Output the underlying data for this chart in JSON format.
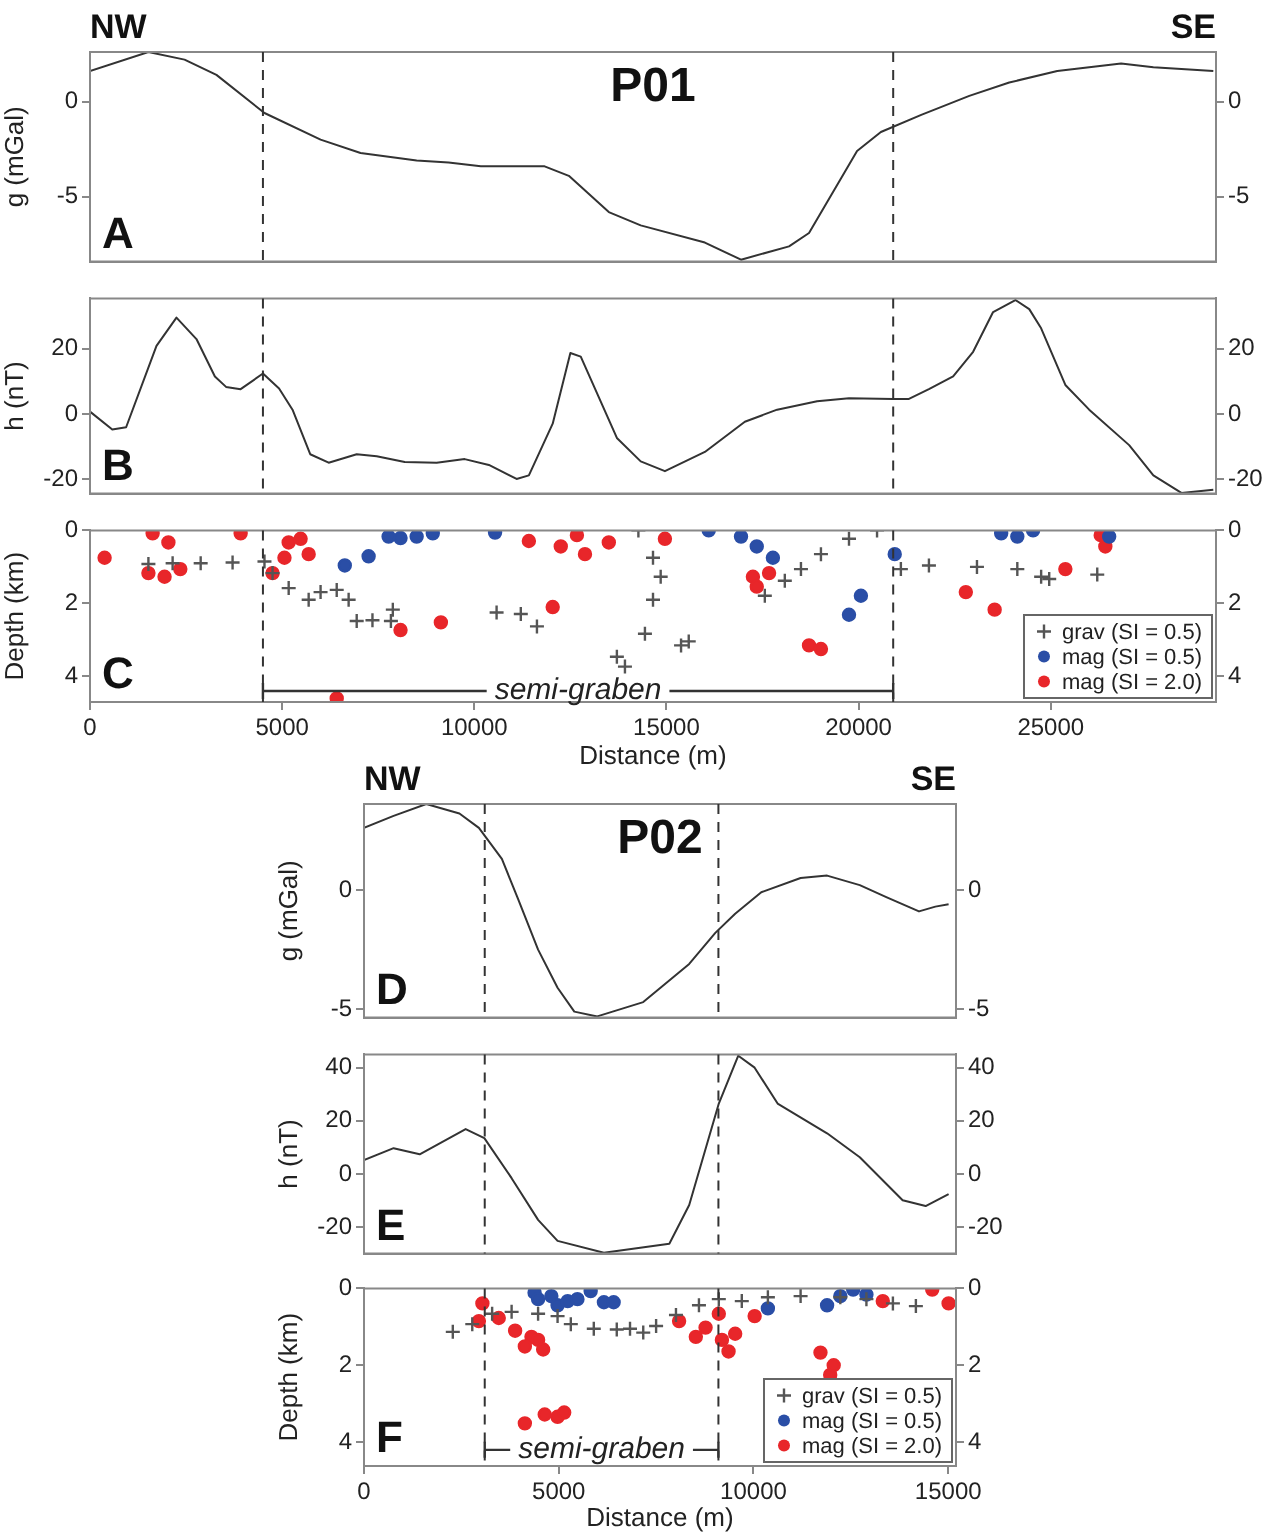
{
  "chart_data": [
    {
      "type": "line",
      "title": "P01",
      "ylabel": "g (mGal)",
      "annotations": [
        "A",
        "NW",
        "SE"
      ],
      "x": [
        0,
        1520,
        2460,
        3290,
        4540,
        6000,
        7040,
        8500,
        9330,
        10170,
        11830,
        12460,
        13500,
        14330,
        16000,
        16940,
        18190,
        18710,
        19960,
        20580,
        21630,
        22880,
        23920,
        25170,
        26830,
        27670,
        29230
      ],
      "series": [
        {
          "color": "#333333",
          "values": [
            1.6,
            2.6,
            2.2,
            1.4,
            -0.6,
            -2.0,
            -2.7,
            -3.1,
            -3.2,
            -3.4,
            -3.4,
            -3.9,
            -5.8,
            -6.5,
            -7.4,
            -8.3,
            -7.6,
            -6.9,
            -2.6,
            -1.6,
            -0.7,
            0.3,
            1.0,
            1.6,
            2.0,
            1.8,
            1.6
          ]
        }
      ],
      "xlim": [
        0,
        29300
      ],
      "ylim": [
        -8.4,
        2.6
      ],
      "yticks": [
        -5,
        0
      ],
      "y2lim": [
        -8.4,
        2.6
      ],
      "y2ticks": [
        -5,
        0
      ],
      "tick_labels": "y",
      "ref_lines": [
        {
          "axis": "x",
          "value": 4500,
          "line_style": "dashed"
        },
        {
          "axis": "x",
          "value": 20900,
          "line_style": "dashed"
        }
      ]
    },
    {
      "type": "line",
      "ylabel": "h (nT)",
      "annotations": [
        "B"
      ],
      "x": [
        0,
        580,
        940,
        1730,
        2250,
        2770,
        3250,
        3540,
        3920,
        4500,
        4920,
        5270,
        5730,
        6210,
        6940,
        7460,
        8190,
        9020,
        9750,
        10380,
        11100,
        11420,
        12040,
        12500,
        12770,
        13710,
        14330,
        14960,
        16000,
        17040,
        17880,
        18920,
        19750,
        20900,
        21310,
        21830,
        22460,
        22980,
        23500,
        24080,
        24440,
        24750,
        25380,
        26000,
        27040,
        27670,
        28400,
        29230
      ],
      "series": [
        {
          "color": "#333333",
          "values": [
            0.7,
            -4.8,
            -4.1,
            20.9,
            29.6,
            23.0,
            11.5,
            8.3,
            7.6,
            12.4,
            7.8,
            1.3,
            -12.4,
            -15.0,
            -12.4,
            -13.0,
            -14.8,
            -15.0,
            -13.9,
            -15.7,
            -20.0,
            -18.9,
            -3.0,
            18.7,
            17.6,
            -7.4,
            -14.6,
            -17.6,
            -11.7,
            -2.4,
            1.3,
            3.9,
            4.8,
            4.6,
            4.6,
            7.6,
            11.5,
            19.1,
            31.3,
            35.0,
            32.2,
            26.3,
            8.9,
            1.3,
            -9.6,
            -18.9,
            -24.3,
            -23.3
          ]
        }
      ],
      "xlim": [
        0,
        29300
      ],
      "ylim": [
        -24.5,
        35.5
      ],
      "yticks": [
        -20,
        0,
        20
      ],
      "y2lim": [
        -24.5,
        35.5
      ],
      "y2ticks": [
        -20,
        0,
        20
      ],
      "tick_labels": "y",
      "ref_lines": [
        {
          "axis": "x",
          "value": 4500,
          "line_style": "dashed"
        },
        {
          "axis": "x",
          "value": 20900,
          "line_style": "dashed"
        }
      ]
    },
    {
      "type": "scatter",
      "xlabel": "Distance (m)",
      "ylabel": "Depth (km)",
      "annotations": [
        "C",
        {
          "text": "semi-graben",
          "x": 4500,
          "y": 4.4
        }
      ],
      "series": [
        {
          "name": "grav (SI = 0.5)",
          "color": "#555555",
          "marker": "cross",
          "x": [
            1520,
            2150,
            2880,
            3710,
            4540,
            4750,
            5170,
            5690,
            6000,
            6420,
            6730,
            6940,
            7350,
            7880,
            7830,
            10580,
            11210,
            11630,
            14270,
            14650,
            14850,
            14650,
            14440,
            13710,
            13920,
            15380,
            15580,
            17560,
            18080,
            18500,
            19020,
            19750,
            20480,
            21100,
            21830,
            23080,
            24130,
            24750,
            24960,
            26210
          ],
          "values": [
            0.92,
            0.9,
            0.9,
            0.88,
            0.85,
            1.17,
            1.58,
            1.9,
            1.69,
            1.63,
            1.9,
            2.48,
            2.46,
            2.17,
            2.48,
            2.25,
            2.29,
            2.63,
            0,
            0.75,
            1.27,
            1.9,
            2.83,
            3.46,
            3.73,
            3.15,
            3.04,
            1.79,
            1.38,
            1.06,
            0.65,
            0.23,
            0,
            1.06,
            0.96,
            1.0,
            1.06,
            1.27,
            1.33,
            1.21
          ]
        },
        {
          "name": "mag (SI = 0.5)",
          "color": "#2a4ea6",
          "marker": "circle",
          "x": [
            8500,
            8080,
            8920,
            7770,
            10540,
            16100,
            16940,
            17350,
            17770,
            7250,
            6630,
            19750,
            20060,
            20940,
            23710,
            24130,
            24540,
            26520
          ],
          "values": [
            0.17,
            0.21,
            0.08,
            0.17,
            0.06,
            0,
            0.17,
            0.44,
            0.75,
            0.71,
            0.96,
            2.31,
            1.79,
            0.65,
            0.08,
            0.17,
            0,
            0.17
          ]
        },
        {
          "name": "mag (SI = 2.0)",
          "color": "#e8262a",
          "marker": "circle",
          "x": [
            380,
            1630,
            2040,
            3920,
            1520,
            1940,
            2350,
            4750,
            5170,
            5480,
            5690,
            5060,
            8080,
            9130,
            6420,
            12040,
            11420,
            12250,
            12880,
            13500,
            12670,
            14960,
            17250,
            17670,
            17350,
            18710,
            19020,
            22790,
            23540,
            25380,
            26420,
            26300
          ],
          "values": [
            0.75,
            0.08,
            0.33,
            0.08,
            1.17,
            1.27,
            1.06,
            1.17,
            0.33,
            0.23,
            0.65,
            0.75,
            2.73,
            2.52,
            4.6,
            2.1,
            0.29,
            0.44,
            0.65,
            0.33,
            0.13,
            0.23,
            1.27,
            1.17,
            1.54,
            3.15,
            3.25,
            1.69,
            2.17,
            1.06,
            0.44,
            0.13
          ]
        }
      ],
      "xlim": [
        0,
        29300
      ],
      "xticks": [
        0,
        5000,
        10000,
        15000,
        20000,
        25000
      ],
      "ylim": [
        4.7,
        0
      ],
      "yticks": [
        0,
        2,
        4
      ],
      "y2lim": [
        4.7,
        0
      ],
      "y2ticks": [
        0,
        2,
        4
      ],
      "ref_lines": [
        {
          "axis": "x",
          "value": 4500,
          "line_style": "dashed"
        },
        {
          "axis": "x",
          "value": 20900,
          "line_style": "dashed"
        }
      ],
      "legend": "bottom right"
    },
    {
      "type": "line",
      "title": "P02",
      "ylabel": "g (mGal)",
      "annotations": [
        "D",
        "NW",
        "SE"
      ],
      "x": [
        0,
        760,
        1600,
        2450,
        2950,
        3540,
        3960,
        4470,
        4970,
        5400,
        5990,
        7170,
        8350,
        9020,
        9530,
        10200,
        11210,
        11890,
        12730,
        13410,
        14250,
        14670,
        15010
      ],
      "series": [
        {
          "color": "#333333",
          "values": [
            2.6,
            3.1,
            3.6,
            3.2,
            2.6,
            1.3,
            -0.4,
            -2.5,
            -4.1,
            -5.1,
            -5.3,
            -4.7,
            -3.1,
            -1.8,
            -1.0,
            -0.1,
            0.5,
            0.6,
            0.2,
            -0.3,
            -0.9,
            -0.7,
            -0.6
          ]
        }
      ],
      "xlim": [
        0,
        15200
      ],
      "ylim": [
        -5.35,
        3.6
      ],
      "yticks": [
        -5,
        0
      ],
      "y2lim": [
        -5.35,
        3.6
      ],
      "y2ticks": [
        -5,
        0
      ],
      "tick_labels": "y",
      "ref_lines": [
        {
          "axis": "x",
          "value": 3100,
          "line_style": "dashed"
        },
        {
          "axis": "x",
          "value": 9100,
          "line_style": "dashed"
        }
      ]
    },
    {
      "type": "line",
      "ylabel": "h (nT)",
      "annotations": [
        "E"
      ],
      "x": [
        0,
        760,
        1430,
        2610,
        3090,
        3790,
        4470,
        4970,
        6160,
        7840,
        8350,
        9110,
        9610,
        10030,
        10620,
        11890,
        12730,
        13830,
        14420,
        15010
      ],
      "series": [
        {
          "color": "#333333",
          "values": [
            5.2,
            9.7,
            7.4,
            16.9,
            13.5,
            -1.6,
            -17.3,
            -25.2,
            -29.7,
            -26.3,
            -11.7,
            26.5,
            44.5,
            40,
            26.5,
            15.3,
            6.3,
            -9.9,
            -12.1,
            -7.6
          ]
        }
      ],
      "xlim": [
        0,
        15200
      ],
      "ylim": [
        -30,
        45
      ],
      "yticks": [
        -20,
        0,
        20,
        40
      ],
      "y2lim": [
        -30,
        45
      ],
      "y2ticks": [
        -20,
        0,
        20,
        40
      ],
      "tick_labels": "y",
      "ref_lines": [
        {
          "axis": "x",
          "value": 3100,
          "line_style": "dashed"
        },
        {
          "axis": "x",
          "value": 9100,
          "line_style": "dashed"
        }
      ]
    },
    {
      "type": "scatter",
      "xlabel": "Distance (m)",
      "ylabel": "Depth (km)",
      "annotations": [
        "F",
        {
          "text": "semi-graben",
          "x": 3100,
          "y": 4.2
        }
      ],
      "series": [
        {
          "name": "grav (SI = 0.5)",
          "color": "#555555",
          "marker": "cross",
          "x": [
            2280,
            2780,
            3290,
            3790,
            4470,
            4970,
            5310,
            5900,
            6490,
            6830,
            7170,
            7500,
            8010,
            8600,
            9110,
            9700,
            10370,
            11210,
            12230,
            12900,
            13580,
            14170
          ],
          "values": [
            1.13,
            0.93,
            0.66,
            0.61,
            0.66,
            0.72,
            0.93,
            1.05,
            1.07,
            1.05,
            1.15,
            0.98,
            0.69,
            0.44,
            0.28,
            0.33,
            0.23,
            0.2,
            0.23,
            0.28,
            0.39,
            0.46
          ]
        },
        {
          "name": "mag (SI = 0.5)",
          "color": "#2a4ea6",
          "marker": "circle",
          "x": [
            4380,
            4470,
            4810,
            4970,
            5230,
            5480,
            5820,
            6160,
            6410,
            10370,
            11890,
            12230,
            12560,
            12900
          ],
          "values": [
            0.11,
            0.28,
            0.2,
            0.44,
            0.33,
            0.28,
            0.07,
            0.36,
            0.36,
            0.52,
            0.44,
            0.2,
            0.03,
            0.16
          ]
        },
        {
          "name": "mag (SI = 2.0)",
          "color": "#e8262a",
          "marker": "circle",
          "x": [
            3040,
            2950,
            3460,
            3880,
            4300,
            4130,
            4470,
            4600,
            4130,
            4640,
            4970,
            5140,
            8090,
            8520,
            8770,
            9110,
            9190,
            9530,
            9360,
            10030,
            11720,
            11970,
            12060,
            13320,
            14590,
            15010
          ],
          "values": [
            0.39,
            0.85,
            0.77,
            1.1,
            1.26,
            1.51,
            1.34,
            1.59,
            3.51,
            3.28,
            3.34,
            3.23,
            0.85,
            1.26,
            1.02,
            0.66,
            1.34,
            1.18,
            1.64,
            0.72,
            1.67,
            2.25,
            2.0,
            0.33,
            0.03,
            0.39
          ]
        }
      ],
      "xlim": [
        0,
        15200
      ],
      "xticks": [
        0,
        5000,
        10000,
        15000
      ],
      "ylim": [
        4.62,
        0
      ],
      "yticks": [
        0,
        2,
        4
      ],
      "y2lim": [
        4.62,
        0
      ],
      "y2ticks": [
        0,
        2,
        4
      ],
      "ref_lines": [
        {
          "axis": "x",
          "value": 3100,
          "line_style": "dashed"
        },
        {
          "axis": "x",
          "value": 9100,
          "line_style": "dashed"
        }
      ],
      "legend": "bottom right"
    }
  ]
}
